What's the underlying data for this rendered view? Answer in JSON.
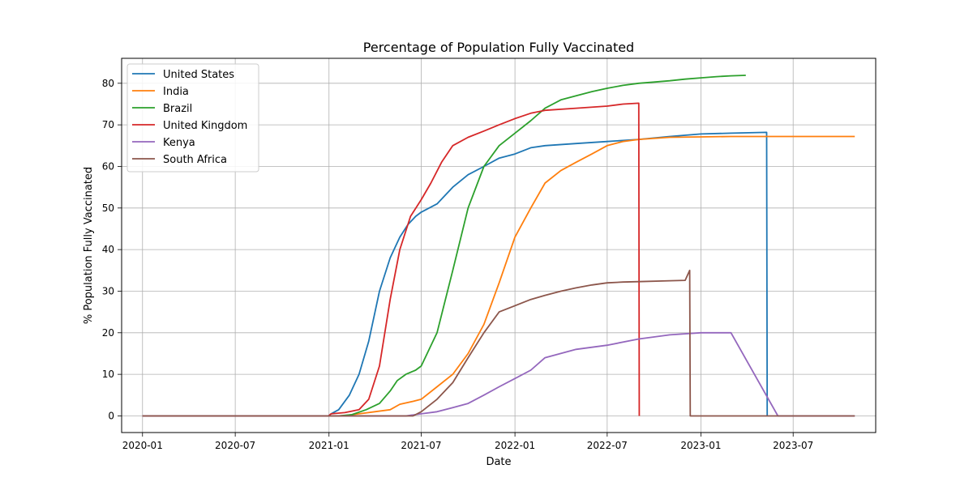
{
  "chart_data": {
    "type": "line",
    "title": "Percentage of Population Fully Vaccinated",
    "xlabel": "Date",
    "ylabel": "% Population Fully Vaccinated",
    "xlim": [
      "2019-11-21",
      "2023-12-10"
    ],
    "ylim": [
      -4,
      86
    ],
    "x_ticks": [
      "2020-01",
      "2020-07",
      "2021-01",
      "2021-07",
      "2022-01",
      "2022-07",
      "2023-01",
      "2023-07"
    ],
    "x_tick_dates": [
      "2020-01-01",
      "2020-07-01",
      "2021-01-01",
      "2021-07-01",
      "2022-01-01",
      "2022-07-01",
      "2023-01-01",
      "2023-07-01"
    ],
    "y_ticks": [
      0,
      10,
      20,
      30,
      40,
      50,
      60,
      70,
      80
    ],
    "y_tick_labels": [
      "0",
      "10",
      "20",
      "30",
      "40",
      "50",
      "60",
      "70",
      "80"
    ],
    "grid": true,
    "legend_position": "top-left",
    "series": [
      {
        "name": "United States",
        "color": "#1f77b4",
        "x": [
          "2020-01-01",
          "2020-12-31",
          "2021-01-05",
          "2021-01-20",
          "2021-02-10",
          "2021-03-01",
          "2021-03-20",
          "2021-04-10",
          "2021-05-01",
          "2021-05-20",
          "2021-06-05",
          "2021-06-20",
          "2021-07-01",
          "2021-08-01",
          "2021-09-01",
          "2021-10-01",
          "2021-11-01",
          "2021-12-01",
          "2022-01-01",
          "2022-02-01",
          "2022-03-01",
          "2022-05-01",
          "2022-07-01",
          "2022-09-01",
          "2022-11-01",
          "2023-01-01",
          "2023-03-01",
          "2023-05-10",
          "2023-05-11"
        ],
        "y": [
          0,
          0,
          0.5,
          1.5,
          5,
          10,
          18,
          30,
          38,
          43,
          46,
          48,
          49,
          51,
          55,
          58,
          60,
          62,
          63,
          64.5,
          65,
          65.5,
          66,
          66.5,
          67.2,
          67.8,
          68,
          68.2,
          0
        ]
      },
      {
        "name": "India",
        "color": "#ff7f0e",
        "x": [
          "2020-01-01",
          "2021-01-15",
          "2021-02-01",
          "2021-03-01",
          "2021-04-01",
          "2021-05-01",
          "2021-05-20",
          "2021-06-15",
          "2021-07-01",
          "2021-08-01",
          "2021-09-01",
          "2021-10-01",
          "2021-11-01",
          "2021-12-01",
          "2022-01-01",
          "2022-02-01",
          "2022-03-01",
          "2022-04-01",
          "2022-05-01",
          "2022-06-01",
          "2022-07-01",
          "2022-08-01",
          "2022-09-01",
          "2022-11-01",
          "2023-01-01",
          "2023-03-01",
          "2023-05-01",
          "2023-07-01",
          "2023-09-01",
          "2023-10-30"
        ],
        "y": [
          0,
          0,
          0.1,
          0.5,
          1,
          1.5,
          2.8,
          3.5,
          4,
          7,
          10,
          15,
          22,
          32,
          43,
          50,
          56,
          59,
          61,
          63,
          65,
          66,
          66.5,
          67,
          67.1,
          67.2,
          67.2,
          67.2,
          67.2,
          67.2
        ]
      },
      {
        "name": "Brazil",
        "color": "#2ca02c",
        "x": [
          "2020-01-01",
          "2021-01-20",
          "2021-02-15",
          "2021-03-15",
          "2021-04-10",
          "2021-05-01",
          "2021-05-15",
          "2021-06-01",
          "2021-06-20",
          "2021-07-01",
          "2021-08-01",
          "2021-09-01",
          "2021-10-01",
          "2021-11-01",
          "2021-12-01",
          "2022-01-01",
          "2022-02-01",
          "2022-03-01",
          "2022-04-01",
          "2022-05-01",
          "2022-06-01",
          "2022-07-01",
          "2022-08-01",
          "2022-09-01",
          "2022-10-01",
          "2022-11-01",
          "2022-12-01",
          "2023-01-01",
          "2023-02-01",
          "2023-03-01",
          "2023-03-30"
        ],
        "y": [
          0,
          0,
          0.3,
          1.5,
          3,
          6,
          8.5,
          10,
          11,
          12,
          20,
          35,
          50,
          60,
          65,
          68,
          71,
          74,
          76,
          77,
          78,
          78.8,
          79.5,
          80,
          80.3,
          80.6,
          81,
          81.3,
          81.6,
          81.8,
          81.9
        ]
      },
      {
        "name": "United Kingdom",
        "color": "#d62728",
        "x": [
          "2020-01-01",
          "2020-12-31",
          "2021-01-05",
          "2021-02-01",
          "2021-03-01",
          "2021-03-20",
          "2021-04-10",
          "2021-05-01",
          "2021-05-20",
          "2021-06-10",
          "2021-07-01",
          "2021-07-20",
          "2021-08-10",
          "2021-09-01",
          "2021-10-01",
          "2021-11-01",
          "2021-12-01",
          "2022-01-01",
          "2022-02-01",
          "2022-03-01",
          "2022-05-01",
          "2022-07-01",
          "2022-08-01",
          "2022-09-01",
          "2022-09-02"
        ],
        "y": [
          0,
          0,
          0.5,
          0.8,
          1.5,
          4,
          12,
          28,
          40,
          48,
          52,
          56,
          61,
          65,
          67,
          68.5,
          70,
          71.5,
          72.8,
          73.5,
          74,
          74.5,
          75,
          75.2,
          0
        ]
      },
      {
        "name": "Kenya",
        "color": "#9467bd",
        "x": [
          "2020-01-01",
          "2021-06-01",
          "2021-07-01",
          "2021-08-01",
          "2021-09-01",
          "2021-10-01",
          "2021-11-01",
          "2021-12-01",
          "2022-01-01",
          "2022-02-01",
          "2022-03-01",
          "2022-05-01",
          "2022-07-01",
          "2022-09-01",
          "2022-11-01",
          "2023-01-01",
          "2023-03-01",
          "2023-06-01",
          "2023-10-30"
        ],
        "y": [
          0,
          0,
          0.5,
          1,
          2,
          3,
          5,
          7,
          9,
          11,
          14,
          16,
          17,
          18.5,
          19.5,
          20,
          20,
          0,
          0
        ]
      },
      {
        "name": "South Africa",
        "color": "#8c564b",
        "x": [
          "2020-01-01",
          "2021-06-15",
          "2021-07-01",
          "2021-08-01",
          "2021-09-01",
          "2021-10-01",
          "2021-11-01",
          "2021-12-01",
          "2022-01-01",
          "2022-02-01",
          "2022-03-01",
          "2022-04-01",
          "2022-05-01",
          "2022-06-01",
          "2022-07-01",
          "2022-08-01",
          "2022-09-01",
          "2022-11-01",
          "2022-12-01",
          "2022-12-10",
          "2022-12-11",
          "2023-05-01",
          "2023-10-30"
        ],
        "y": [
          0,
          0,
          1,
          4,
          8,
          14,
          20,
          25,
          26.5,
          28,
          29,
          30,
          30.8,
          31.5,
          32,
          32.2,
          32.3,
          32.5,
          32.6,
          35,
          0,
          0,
          0
        ]
      }
    ]
  }
}
